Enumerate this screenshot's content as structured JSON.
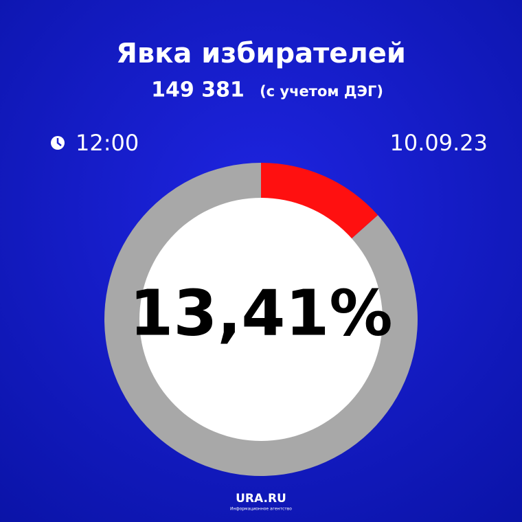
{
  "chart_data": {
    "type": "donut",
    "title": "Явка избирателей",
    "subtitle": "149 381",
    "subtitle_note": "(с учетом ДЭГ)",
    "time": "12:00",
    "date": "10.09.23",
    "categories": [
      null,
      null
    ],
    "values": [
      13.41,
      86.59
    ],
    "value_labels": [
      "13,41%",
      null
    ],
    "colors": [
      "#ff1010",
      "#a8a8a8"
    ],
    "source": "URA.RU",
    "source_note": "Информационное агентство"
  }
}
